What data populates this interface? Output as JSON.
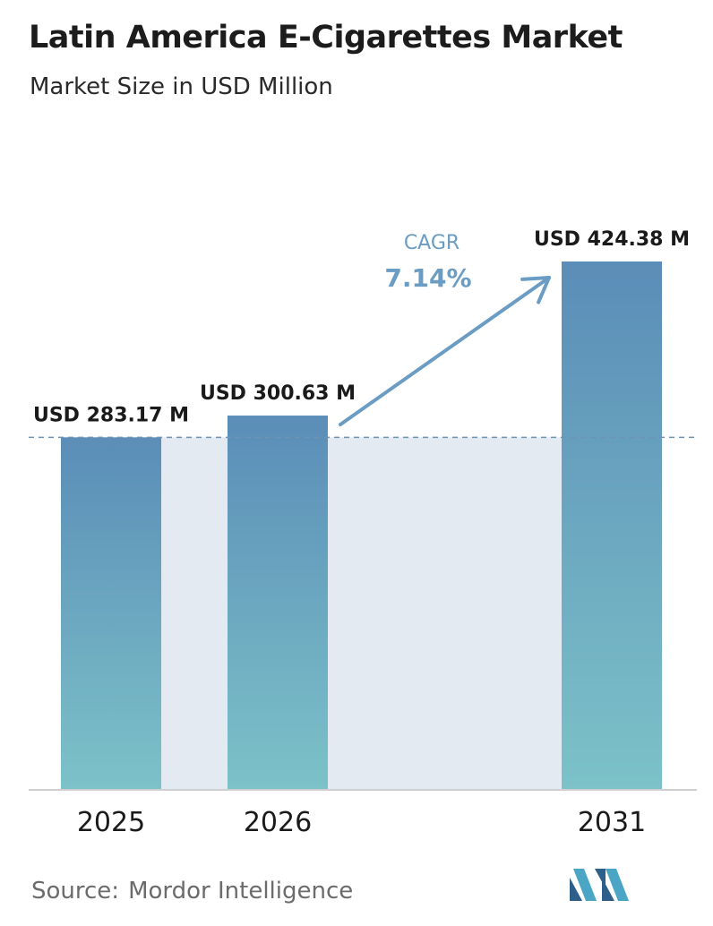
{
  "header": {
    "title": "Latin America E-Cigarettes Market",
    "subtitle": "Market Size in USD Million"
  },
  "chart_data": {
    "type": "bar",
    "title": "Latin America E-Cigarettes Market",
    "subtitle": "Market Size in USD Million",
    "categories": [
      "2025",
      "2026",
      "2031"
    ],
    "values": [
      283.17,
      300.63,
      424.38
    ],
    "data_labels": [
      "USD 283.17 M",
      "USD 300.63 M",
      "USD 424.38 M"
    ],
    "unit": "USD Million",
    "ylim": [
      0,
      424.38
    ],
    "grid": false,
    "reference_line": {
      "value": 283.17,
      "style": "dashed"
    },
    "annotation": {
      "label": "CAGR",
      "value": "7.14%"
    },
    "colors": {
      "bar_top": "#5b8db8",
      "bar_bottom": "#7cc2c8",
      "band": "#e3eaf2",
      "arrow": "#6a9cc4",
      "reference_line": "#6f94b3",
      "axis": "#cfcfcf"
    }
  },
  "footer": {
    "source_label": "Source:",
    "source_name": "Mordor Intelligence",
    "logo_icon": "mordor-intelligence-logo-icon"
  }
}
